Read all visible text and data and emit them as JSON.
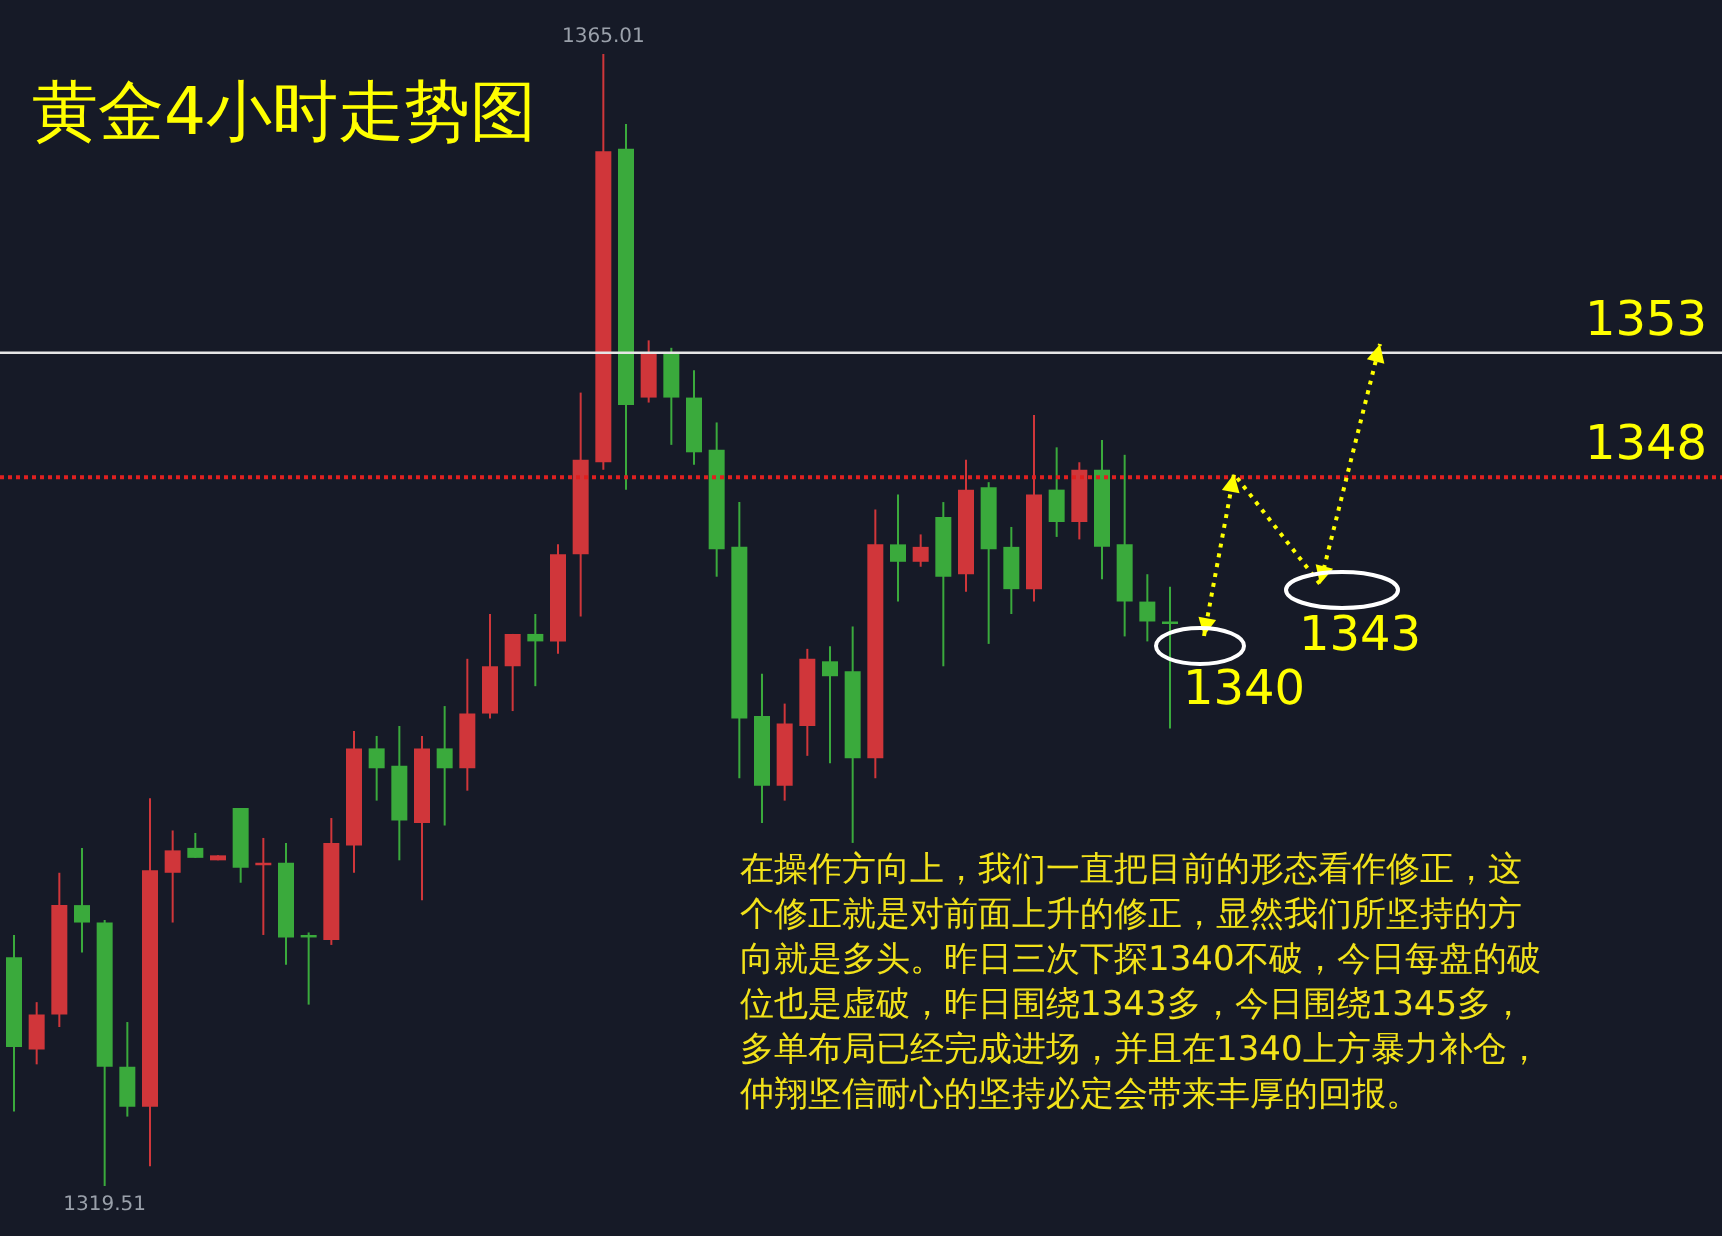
{
  "chart_data": {
    "type": "candlestick",
    "title": "黄金4小时走势图",
    "categories": [
      null,
      null,
      null,
      null,
      null,
      null,
      null,
      null,
      null,
      null,
      null,
      null,
      null,
      null,
      null,
      null,
      null,
      null,
      null,
      null,
      null,
      null,
      null,
      null,
      null,
      null,
      null,
      null,
      null,
      null,
      null,
      null,
      null,
      null,
      null,
      null,
      null,
      null,
      null,
      null,
      null,
      null,
      null,
      null,
      null,
      null,
      null,
      null,
      null,
      null,
      null,
      null
    ],
    "ohlc": [
      [
        1328.7,
        1329.6,
        1322.5,
        1325.1
      ],
      [
        1325.0,
        1326.9,
        1324.4,
        1326.4
      ],
      [
        1326.4,
        1332.1,
        1325.9,
        1330.8
      ],
      [
        1330.8,
        1333.1,
        1328.9,
        1330.1
      ],
      [
        1330.1,
        1330.2,
        1319.51,
        1324.3
      ],
      [
        1324.3,
        1326.1,
        1322.3,
        1322.7
      ],
      [
        1322.7,
        1335.1,
        1320.3,
        1332.2
      ],
      [
        1332.1,
        1333.8,
        1330.1,
        1333.0
      ],
      [
        1333.1,
        1333.7,
        1332.7,
        1332.7
      ],
      [
        1332.6,
        1332.8,
        1332.6,
        1332.8
      ],
      [
        1334.7,
        1334.7,
        1331.7,
        1332.3
      ],
      [
        1332.4,
        1333.5,
        1329.6,
        1332.5
      ],
      [
        1332.5,
        1333.3,
        1328.4,
        1329.5
      ],
      [
        1329.6,
        1329.7,
        1326.8,
        1329.5
      ],
      [
        1329.4,
        1334.3,
        1329.2,
        1333.3
      ],
      [
        1333.2,
        1337.8,
        1332.1,
        1337.1
      ],
      [
        1337.1,
        1337.6,
        1335.0,
        1336.3
      ],
      [
        1336.4,
        1338.0,
        1332.6,
        1334.2
      ],
      [
        1334.1,
        1337.6,
        1331.0,
        1337.1
      ],
      [
        1337.1,
        1338.8,
        1334.0,
        1336.3
      ],
      [
        1336.3,
        1340.7,
        1335.4,
        1338.5
      ],
      [
        1338.5,
        1342.5,
        1338.3,
        1340.4
      ],
      [
        1340.4,
        1341.7,
        1338.6,
        1341.7
      ],
      [
        1341.7,
        1342.5,
        1339.6,
        1341.4
      ],
      [
        1341.4,
        1345.3,
        1340.9,
        1344.9
      ],
      [
        1344.9,
        1351.4,
        1342.4,
        1348.7
      ],
      [
        1348.6,
        1365.01,
        1348.3,
        1361.1
      ],
      [
        1361.2,
        1362.2,
        1347.5,
        1350.9
      ],
      [
        1351.2,
        1353.5,
        1351.0,
        1353.0
      ],
      [
        1353.0,
        1353.2,
        1349.3,
        1351.2
      ],
      [
        1351.2,
        1352.3,
        1348.5,
        1349.0
      ],
      [
        1349.1,
        1350.2,
        1344.0,
        1345.1
      ],
      [
        1345.2,
        1347.0,
        1335.9,
        1338.3
      ],
      [
        1338.4,
        1340.1,
        1334.1,
        1335.6
      ],
      [
        1335.6,
        1338.9,
        1335.0,
        1338.1
      ],
      [
        1338.0,
        1341.1,
        1336.8,
        1340.7
      ],
      [
        1340.6,
        1341.2,
        1336.5,
        1340.0
      ],
      [
        1340.2,
        1342.0,
        1333.3,
        1336.7
      ],
      [
        1336.7,
        1346.7,
        1335.9,
        1345.3
      ],
      [
        1345.3,
        1347.3,
        1343.0,
        1344.6
      ],
      [
        1344.6,
        1345.7,
        1344.4,
        1345.2
      ],
      [
        1346.4,
        1347.0,
        1340.4,
        1344.0
      ],
      [
        1344.1,
        1348.7,
        1343.4,
        1347.5
      ],
      [
        1347.6,
        1347.8,
        1341.3,
        1345.1
      ],
      [
        1345.2,
        1346.0,
        1342.5,
        1343.5
      ],
      [
        1343.5,
        1350.5,
        1343.0,
        1347.3
      ],
      [
        1347.5,
        1349.2,
        1345.6,
        1346.2
      ],
      [
        1346.2,
        1348.6,
        1345.5,
        1348.3
      ],
      [
        1348.3,
        1349.5,
        1343.9,
        1345.2
      ],
      [
        1345.3,
        1348.9,
        1341.6,
        1343.0
      ],
      [
        1343.0,
        1344.1,
        1341.4,
        1342.2
      ],
      [
        1342.2,
        1343.6,
        1337.9,
        1342.1
      ]
    ],
    "colors": [
      "#3aaa3c",
      "#d0363a",
      "#d0363a",
      "#3aaa3c",
      "#3aaa3c",
      "#3aaa3c",
      "#d0363a",
      "#d0363a",
      "#3aaa3c",
      "#d0363a",
      "#3aaa3c",
      "#d0363a",
      "#3aaa3c",
      "#3aaa3c",
      "#d0363a",
      "#d0363a",
      "#3aaa3c",
      "#3aaa3c",
      "#d0363a",
      "#3aaa3c",
      "#d0363a",
      "#d0363a",
      "#d0363a",
      "#3aaa3c",
      "#d0363a",
      "#d0363a",
      "#d0363a",
      "#3aaa3c",
      "#d0363a",
      "#3aaa3c",
      "#3aaa3c",
      "#3aaa3c",
      "#3aaa3c",
      "#3aaa3c",
      "#d0363a",
      "#d0363a",
      "#3aaa3c",
      "#3aaa3c",
      "#d0363a",
      "#3aaa3c",
      "#d0363a",
      "#3aaa3c",
      "#d0363a",
      "#3aaa3c",
      "#3aaa3c",
      "#d0363a",
      "#3aaa3c",
      "#d0363a",
      "#3aaa3c",
      "#3aaa3c",
      "#3aaa3c",
      "#3aaa3c"
    ],
    "ref_lines": [
      {
        "axis": "y",
        "value": 1353,
        "label": "1353",
        "color": "#e6e6e6",
        "line_style": "solid"
      },
      {
        "axis": "y",
        "value": 1348,
        "label": "1348",
        "color": "#e02020",
        "line_style": "dotted"
      }
    ],
    "annotations": [
      {
        "text": "1365.01",
        "y": 1365.01
      },
      {
        "text": "1319.51",
        "y": 1319.51
      },
      "1340",
      "1343",
      "在操作方向上，我们一直把目前的形态看作修正，这个修正就是对前面上升的修正，显然我们所坚持的方向就是多头。昨日三次下探1340不破，今日每盘的破位也是虚破，昨日围绕1343多，今日围绕1345多，多单布局已经完成进场，并且在1340上方暴力补仓，仲翔坚信耐心的坚持必定会带来丰厚的回报。"
    ]
  }
}
